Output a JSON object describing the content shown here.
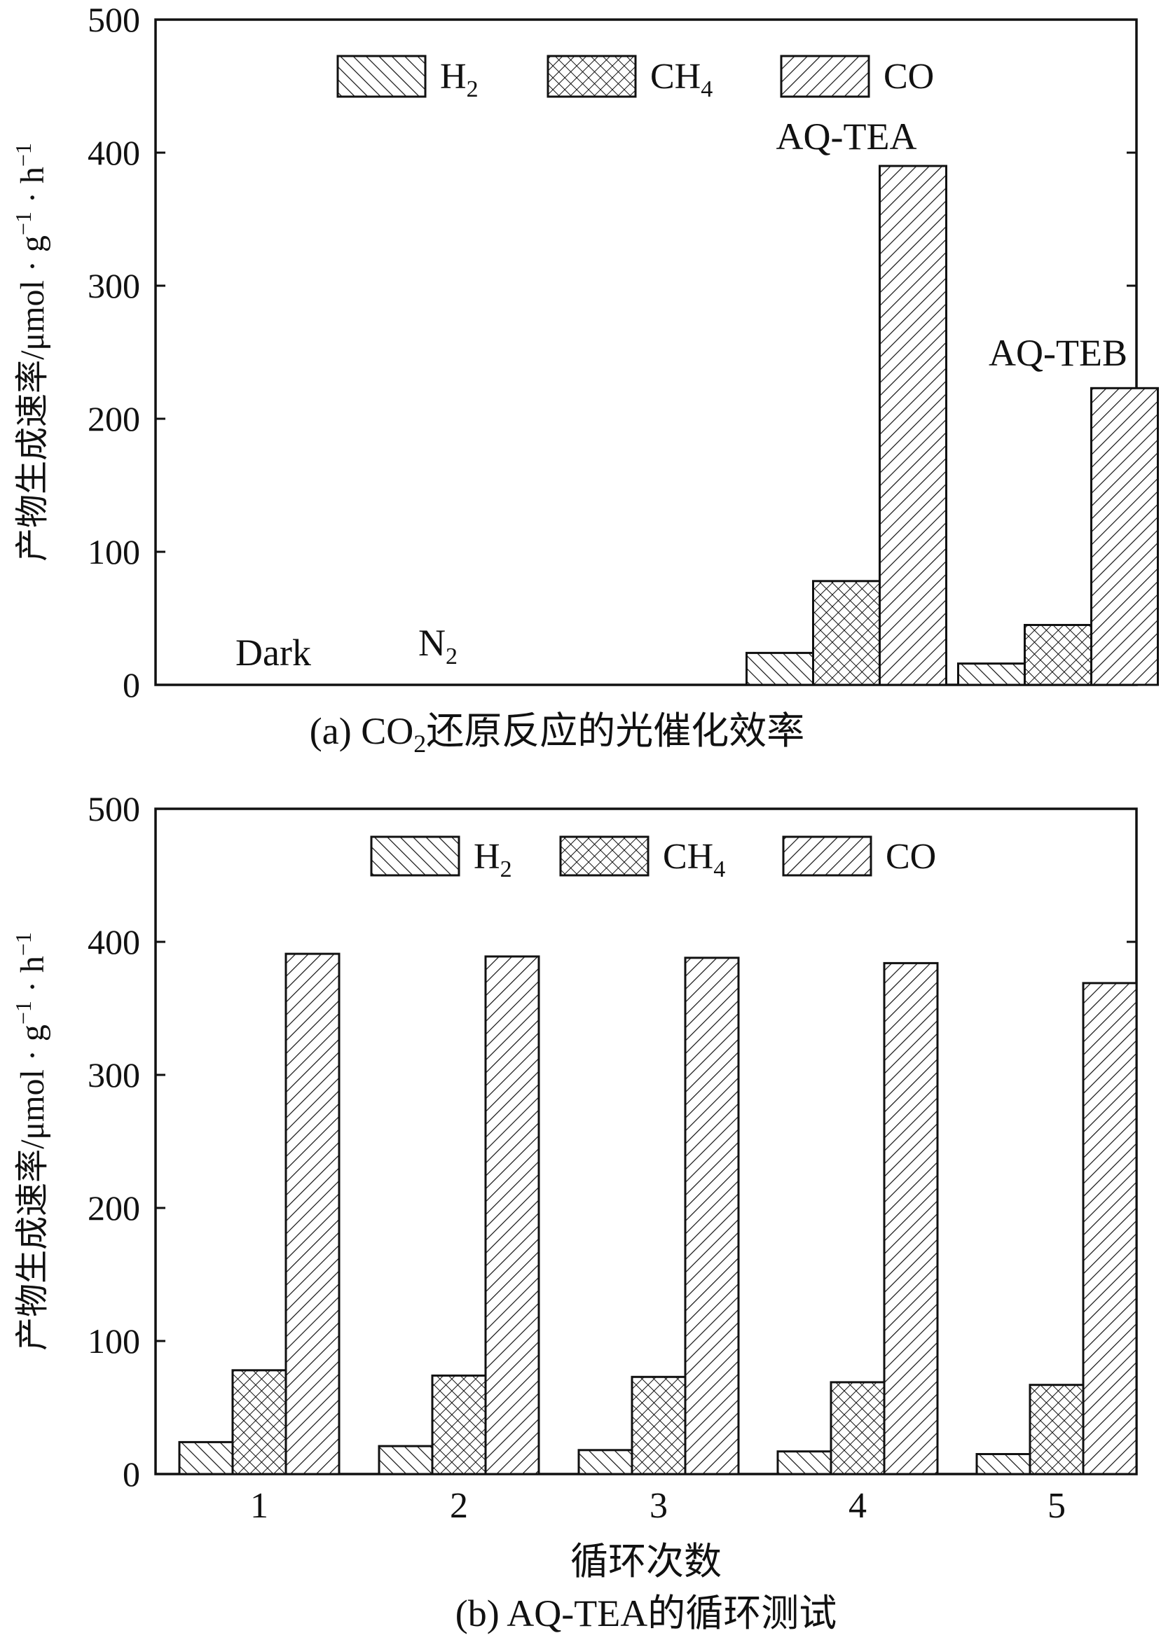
{
  "colors": {
    "ink": "#111111",
    "background": "#ffffff"
  },
  "chart_data": [
    {
      "type": "bar",
      "title": "",
      "caption": "(a) CO",
      "caption_sub": "2",
      "caption_rest": "还原反应的光催化效率",
      "ylabel": "产物生成速率/μmol · g",
      "ylabel_sup1": "−1",
      "ylabel_mid": " · h",
      "ylabel_sup2": "−1",
      "xlabel": "",
      "ylim": [
        0,
        500
      ],
      "yticks": [
        0,
        100,
        200,
        300,
        400,
        500
      ],
      "grid": false,
      "legend_placement": "top-center",
      "legend": [
        {
          "name": "H",
          "sub": "2",
          "pattern": "diag-back"
        },
        {
          "name": "CH",
          "sub": "4",
          "pattern": "crosshatch"
        },
        {
          "name": "CO",
          "sub": "",
          "pattern": "diag-fwd"
        }
      ],
      "categories": [
        "Dark",
        "N2",
        "AQ-TEA",
        "AQ-TEB"
      ],
      "category_labels": [
        {
          "text": "Dark",
          "sub": ""
        },
        {
          "text": "N",
          "sub": "2"
        },
        {
          "text": "AQ-TEA",
          "sub": ""
        },
        {
          "text": "AQ-TEB",
          "sub": ""
        }
      ],
      "series": [
        {
          "name": "H2",
          "values": [
            0,
            0,
            24,
            16
          ]
        },
        {
          "name": "CH4",
          "values": [
            0,
            0,
            78,
            45
          ]
        },
        {
          "name": "CO",
          "values": [
            0,
            0,
            390,
            223
          ]
        }
      ]
    },
    {
      "type": "bar",
      "title": "",
      "caption": "(b) AQ-TEA的循环测试",
      "ylabel": "产物生成速率/μmol · g",
      "ylabel_sup1": "−1",
      "ylabel_mid": " · h",
      "ylabel_sup2": "−1",
      "xlabel": "循环次数",
      "ylim": [
        0,
        500
      ],
      "yticks": [
        0,
        100,
        200,
        300,
        400,
        500
      ],
      "grid": false,
      "legend_placement": "top-center",
      "legend": [
        {
          "name": "H",
          "sub": "2",
          "pattern": "diag-back"
        },
        {
          "name": "CH",
          "sub": "4",
          "pattern": "crosshatch"
        },
        {
          "name": "CO",
          "sub": "",
          "pattern": "diag-fwd"
        }
      ],
      "categories": [
        "1",
        "2",
        "3",
        "4",
        "5"
      ],
      "series": [
        {
          "name": "H2",
          "values": [
            24,
            21,
            18,
            17,
            15
          ]
        },
        {
          "name": "CH4",
          "values": [
            78,
            74,
            73,
            69,
            67
          ]
        },
        {
          "name": "CO",
          "values": [
            391,
            389,
            388,
            384,
            369
          ]
        }
      ]
    }
  ]
}
